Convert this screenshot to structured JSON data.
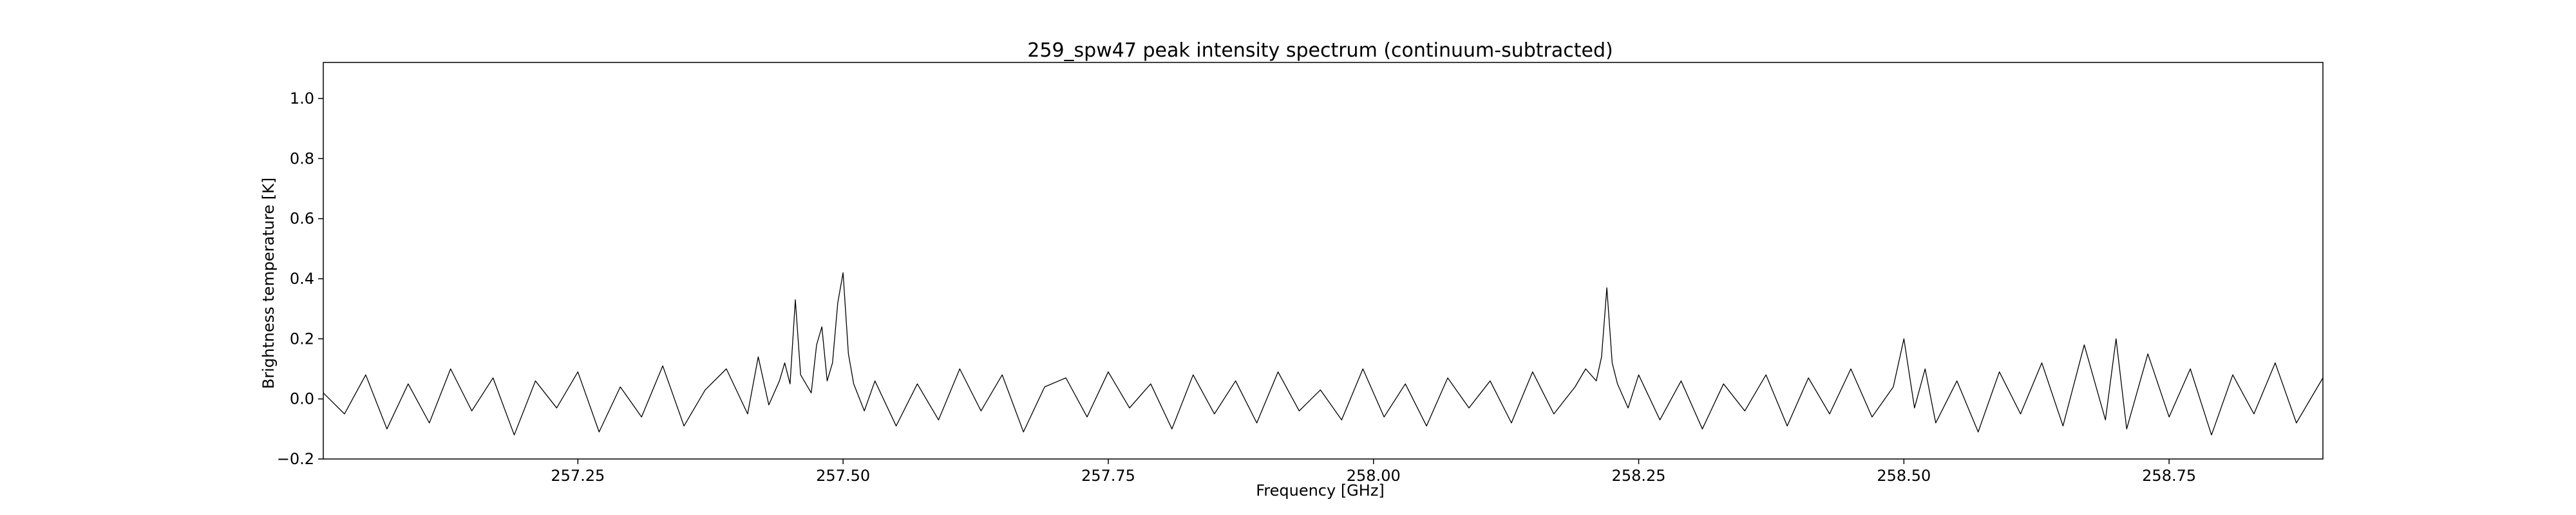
{
  "chart_data": {
    "type": "line",
    "title": "259_spw47 peak intensity spectrum (continuum-subtracted)",
    "xlabel": "Frequency [GHz]",
    "ylabel": "Brightness temperature [K]",
    "xlim": [
      257.01,
      258.895
    ],
    "ylim": [
      -0.2,
      1.12
    ],
    "x_ticks": [
      257.25,
      257.5,
      257.75,
      258.0,
      258.25,
      258.5,
      258.75
    ],
    "x_tick_labels": [
      "257.25",
      "257.50",
      "257.75",
      "258.00",
      "258.25",
      "258.50",
      "258.75"
    ],
    "y_ticks": [
      -0.2,
      0.0,
      0.2,
      0.4,
      0.6,
      0.8,
      1.0
    ],
    "y_tick_labels": [
      "−0.2",
      "0.0",
      "0.2",
      "0.4",
      "0.6",
      "0.8",
      "1.0"
    ],
    "grid": false,
    "line_color": "#000000",
    "series": [
      {
        "x": [
          257.01,
          257.03,
          257.05,
          257.07,
          257.09,
          257.11,
          257.13,
          257.15,
          257.17,
          257.19,
          257.21,
          257.23,
          257.25,
          257.27,
          257.29,
          257.31,
          257.33,
          257.35,
          257.37,
          257.39,
          257.41,
          257.42,
          257.43,
          257.44,
          257.445,
          257.45,
          257.455,
          257.46,
          257.47,
          257.475,
          257.48,
          257.485,
          257.49,
          257.495,
          257.5,
          257.505,
          257.51,
          257.52,
          257.53,
          257.55,
          257.57,
          257.59,
          257.61,
          257.63,
          257.65,
          257.67,
          257.69,
          257.71,
          257.73,
          257.75,
          257.77,
          257.79,
          257.81,
          257.83,
          257.85,
          257.87,
          257.89,
          257.91,
          257.93,
          257.95,
          257.97,
          257.99,
          258.01,
          258.03,
          258.05,
          258.07,
          258.09,
          258.11,
          258.13,
          258.15,
          258.17,
          258.19,
          258.2,
          258.21,
          258.215,
          258.22,
          258.225,
          258.23,
          258.24,
          258.25,
          258.27,
          258.29,
          258.31,
          258.33,
          258.35,
          258.37,
          258.39,
          258.41,
          258.43,
          258.45,
          258.47,
          258.49,
          258.5,
          258.51,
          258.52,
          258.53,
          258.55,
          258.57,
          258.59,
          258.61,
          258.63,
          258.65,
          258.67,
          258.69,
          258.7,
          258.71,
          258.73,
          258.75,
          258.77,
          258.79,
          258.81,
          258.83,
          258.85,
          258.87,
          258.895
        ],
        "y": [
          0.02,
          -0.05,
          0.08,
          -0.1,
          0.05,
          -0.08,
          0.1,
          -0.04,
          0.07,
          -0.12,
          0.06,
          -0.03,
          0.09,
          -0.11,
          0.04,
          -0.06,
          0.11,
          -0.09,
          0.03,
          0.1,
          -0.05,
          0.14,
          -0.02,
          0.06,
          0.12,
          0.05,
          0.33,
          0.08,
          0.02,
          0.18,
          0.24,
          0.06,
          0.12,
          0.32,
          0.42,
          0.15,
          0.05,
          -0.04,
          0.06,
          -0.09,
          0.05,
          -0.07,
          0.1,
          -0.04,
          0.08,
          -0.11,
          0.04,
          0.07,
          -0.06,
          0.09,
          -0.03,
          0.05,
          -0.1,
          0.08,
          -0.05,
          0.06,
          -0.08,
          0.09,
          -0.04,
          0.03,
          -0.07,
          0.1,
          -0.06,
          0.05,
          -0.09,
          0.07,
          -0.03,
          0.06,
          -0.08,
          0.09,
          -0.05,
          0.04,
          0.1,
          0.06,
          0.14,
          0.37,
          0.12,
          0.05,
          -0.03,
          0.08,
          -0.07,
          0.06,
          -0.1,
          0.05,
          -0.04,
          0.08,
          -0.09,
          0.07,
          -0.05,
          0.1,
          -0.06,
          0.04,
          0.2,
          -0.03,
          0.1,
          -0.08,
          0.06,
          -0.11,
          0.09,
          -0.05,
          0.12,
          -0.09,
          0.18,
          -0.07,
          0.2,
          -0.1,
          0.15,
          -0.06,
          0.1,
          -0.12,
          0.08,
          -0.05,
          0.12,
          -0.08,
          0.07
        ]
      }
    ]
  }
}
